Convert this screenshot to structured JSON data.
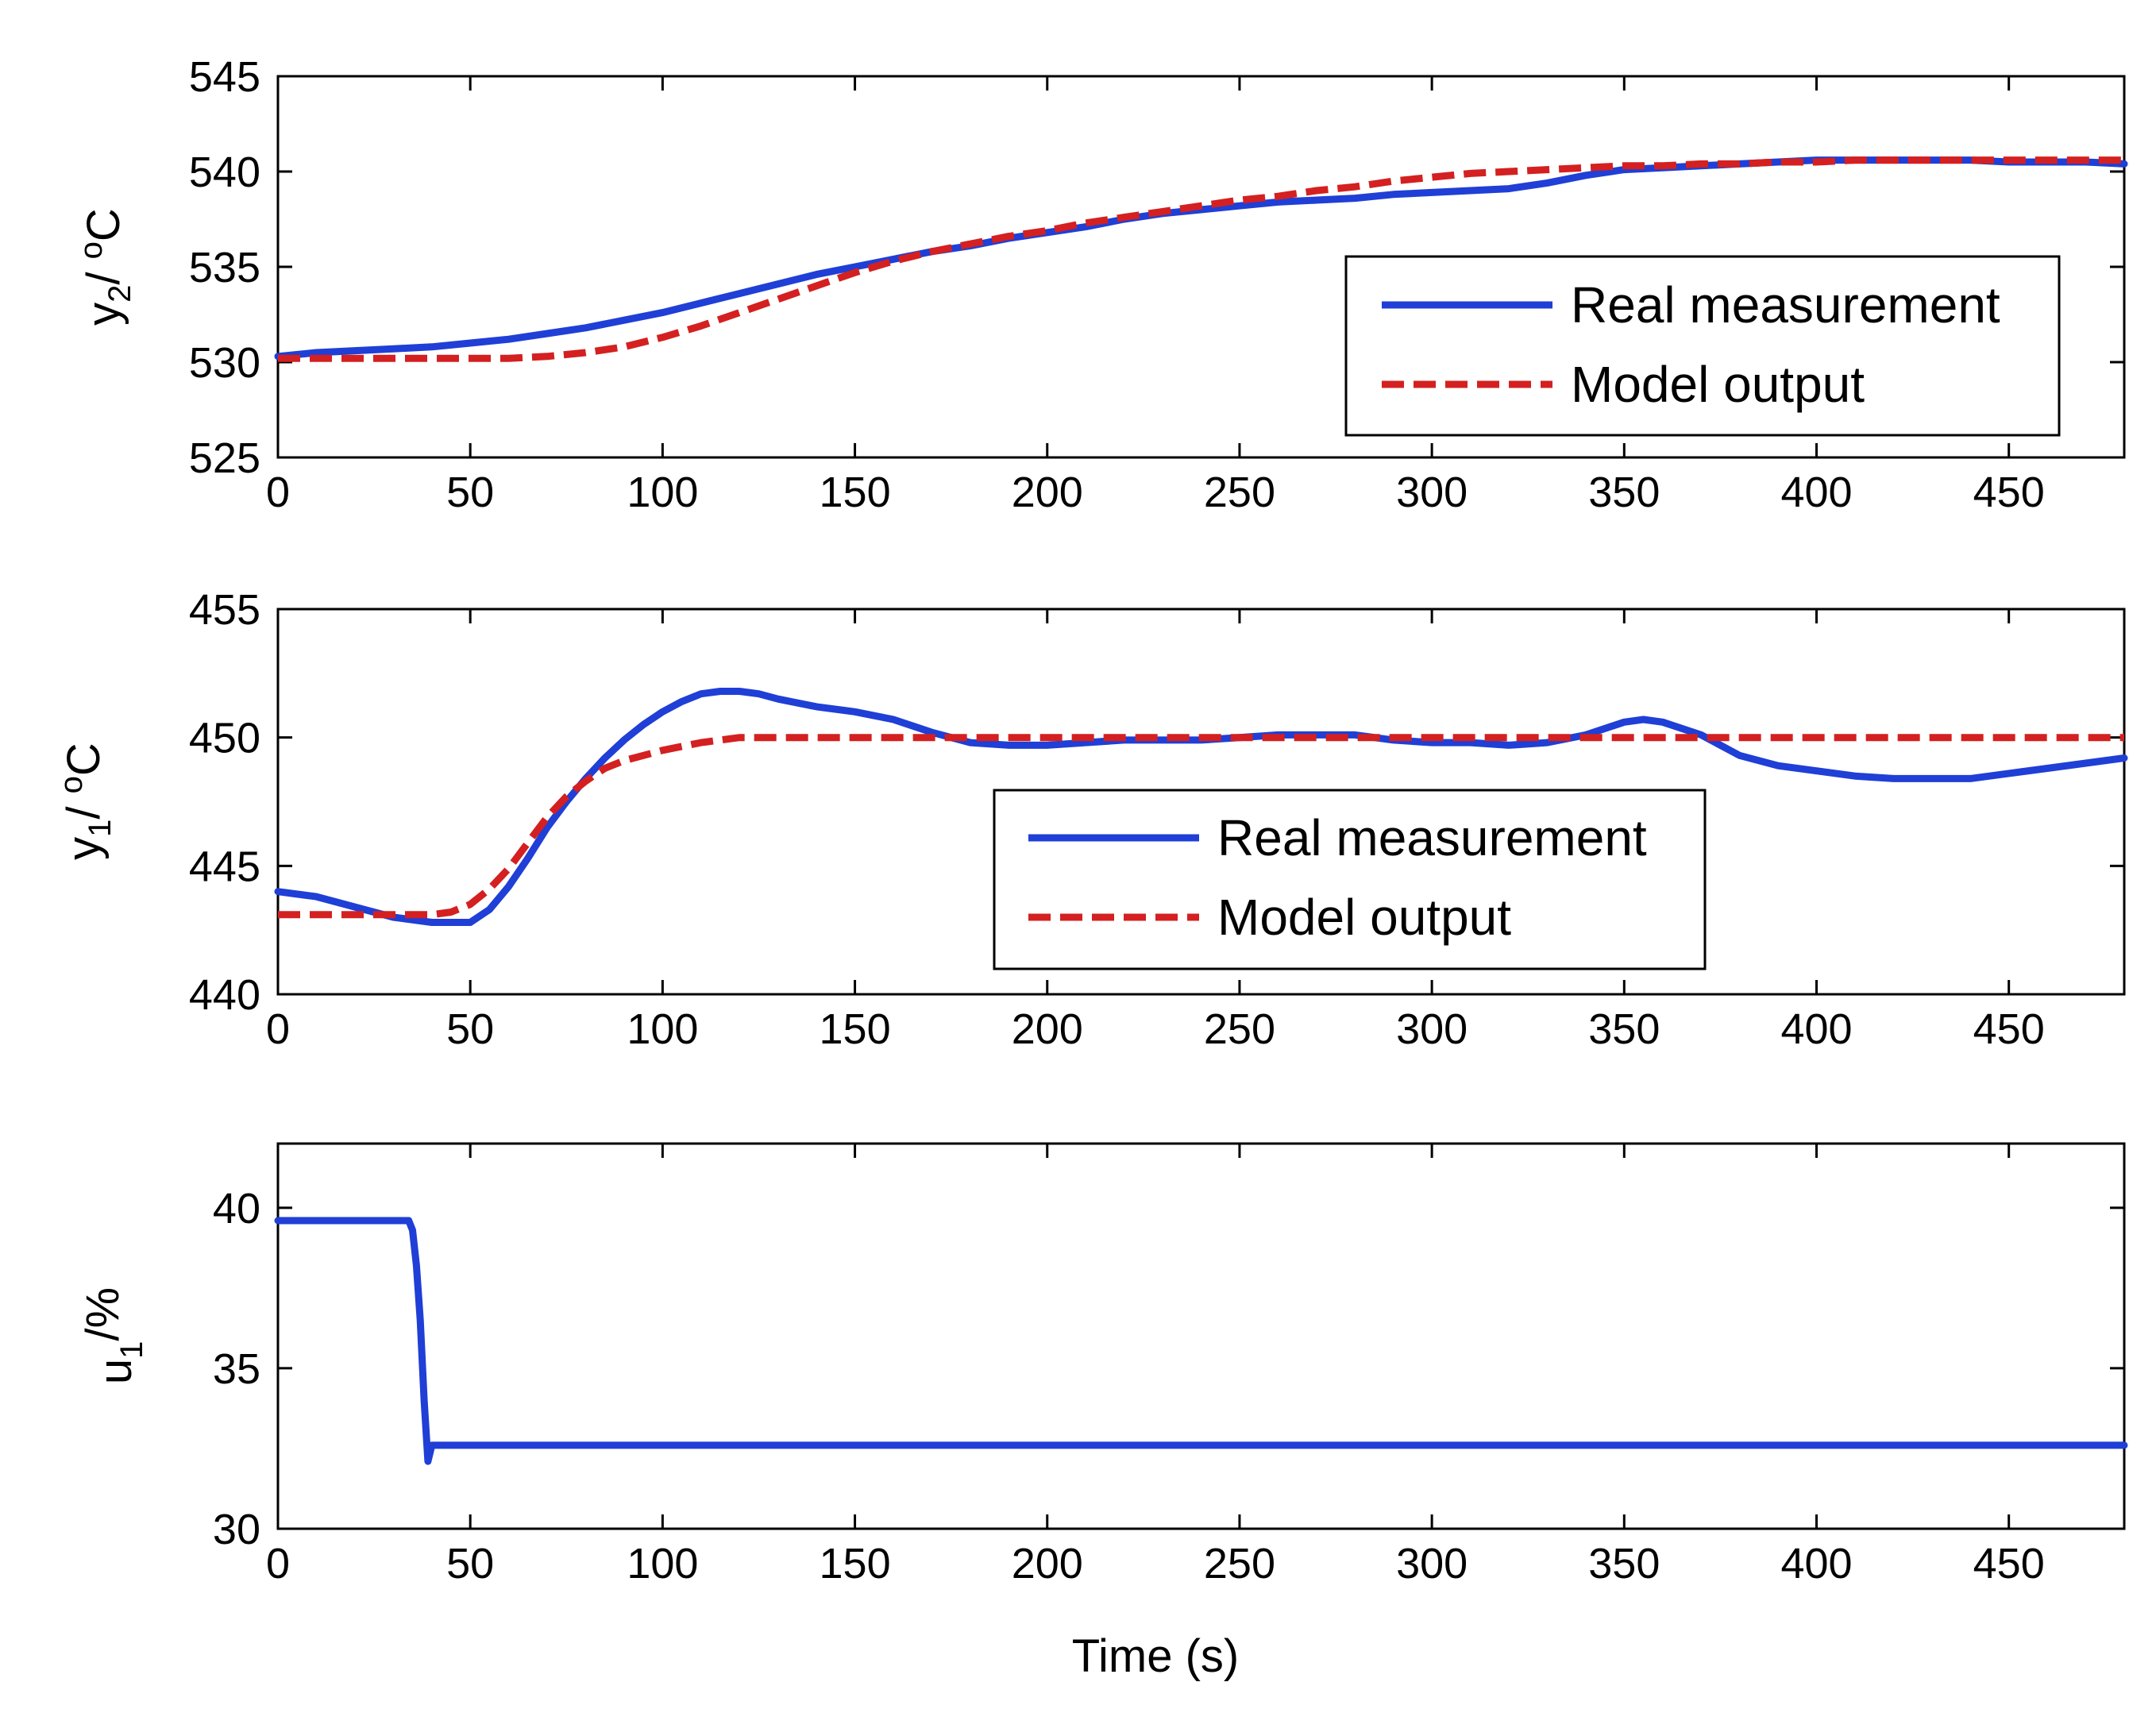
{
  "chart_data": [
    {
      "type": "line",
      "id": "y2",
      "ylabel": "y",
      "ylabel_sub": "2",
      "ylabel_unit": "/ oC",
      "xlabel": "",
      "xlim": [
        0,
        480
      ],
      "ylim": [
        525,
        545
      ],
      "xticks": [
        0,
        50,
        100,
        150,
        200,
        250,
        300,
        350,
        400,
        450
      ],
      "yticks": [
        525,
        530,
        535,
        540,
        545
      ],
      "legend_position": "lower-right",
      "series": [
        {
          "name": "Real measurement",
          "color": "#1f3fd6",
          "style": "solid",
          "x": [
            0,
            10,
            20,
            30,
            40,
            50,
            60,
            70,
            80,
            90,
            100,
            110,
            120,
            130,
            140,
            150,
            160,
            170,
            180,
            190,
            200,
            210,
            220,
            230,
            240,
            250,
            260,
            270,
            280,
            290,
            300,
            310,
            320,
            330,
            340,
            350,
            360,
            370,
            380,
            390,
            400,
            410,
            420,
            430,
            440,
            450,
            460,
            470,
            480
          ],
          "y": [
            530.3,
            530.5,
            530.6,
            530.7,
            530.8,
            531.0,
            531.2,
            531.5,
            531.8,
            532.2,
            532.6,
            533.1,
            533.6,
            534.1,
            534.6,
            535.0,
            535.4,
            535.8,
            536.1,
            536.5,
            536.8,
            537.1,
            537.5,
            537.8,
            538.0,
            538.2,
            538.4,
            538.5,
            538.6,
            538.8,
            538.9,
            539.0,
            539.1,
            539.4,
            539.8,
            540.1,
            540.2,
            540.3,
            540.4,
            540.5,
            540.6,
            540.6,
            540.6,
            540.6,
            540.6,
            540.5,
            540.5,
            540.5,
            540.4
          ]
        },
        {
          "name": "Model output",
          "color": "#d42020",
          "style": "dashed",
          "x": [
            0,
            10,
            20,
            30,
            40,
            50,
            60,
            70,
            80,
            90,
            100,
            110,
            120,
            130,
            140,
            150,
            160,
            170,
            180,
            190,
            200,
            210,
            220,
            230,
            240,
            250,
            260,
            270,
            280,
            290,
            300,
            310,
            320,
            330,
            340,
            350,
            360,
            370,
            380,
            390,
            400,
            410,
            420,
            430,
            440,
            450,
            460,
            470,
            480
          ],
          "y": [
            530.2,
            530.2,
            530.2,
            530.2,
            530.2,
            530.2,
            530.2,
            530.3,
            530.5,
            530.8,
            531.3,
            531.9,
            532.6,
            533.3,
            534.0,
            534.7,
            535.3,
            535.8,
            536.2,
            536.6,
            536.9,
            537.3,
            537.6,
            537.9,
            538.2,
            538.5,
            538.7,
            539.0,
            539.2,
            539.5,
            539.7,
            539.9,
            540.0,
            540.1,
            540.2,
            540.3,
            540.3,
            540.4,
            540.4,
            540.5,
            540.5,
            540.6,
            540.6,
            540.6,
            540.6,
            540.6,
            540.6,
            540.6,
            540.6
          ]
        }
      ]
    },
    {
      "type": "line",
      "id": "y1",
      "ylabel": "y",
      "ylabel_sub": "1",
      "ylabel_unit": "/ oC",
      "xlabel": "",
      "xlim": [
        0,
        480
      ],
      "ylim": [
        440,
        455
      ],
      "xticks": [
        0,
        50,
        100,
        150,
        200,
        250,
        300,
        350,
        400,
        450
      ],
      "yticks": [
        440,
        445,
        450,
        455
      ],
      "legend_position": "center",
      "series": [
        {
          "name": "Real measurement",
          "color": "#1f3fd6",
          "style": "solid",
          "x": [
            0,
            10,
            20,
            30,
            40,
            50,
            55,
            60,
            65,
            70,
            75,
            80,
            85,
            90,
            95,
            100,
            105,
            110,
            115,
            120,
            125,
            130,
            140,
            150,
            160,
            170,
            180,
            190,
            200,
            210,
            220,
            230,
            240,
            250,
            260,
            270,
            280,
            290,
            300,
            310,
            320,
            330,
            340,
            350,
            355,
            360,
            370,
            380,
            390,
            400,
            410,
            420,
            430,
            440,
            450,
            460,
            470,
            480
          ],
          "y": [
            444.0,
            443.8,
            443.4,
            443.0,
            442.8,
            442.8,
            443.3,
            444.2,
            445.3,
            446.5,
            447.5,
            448.4,
            449.2,
            449.9,
            450.5,
            451.0,
            451.4,
            451.7,
            451.8,
            451.8,
            451.7,
            451.5,
            451.2,
            451.0,
            450.7,
            450.2,
            449.8,
            449.7,
            449.7,
            449.8,
            449.9,
            449.9,
            449.9,
            450.0,
            450.1,
            450.1,
            450.1,
            449.9,
            449.8,
            449.8,
            449.7,
            449.8,
            450.1,
            450.6,
            450.7,
            450.6,
            450.1,
            449.3,
            448.9,
            448.7,
            448.5,
            448.4,
            448.4,
            448.4,
            448.6,
            448.8,
            449.0,
            449.2
          ]
        },
        {
          "name": "Model output",
          "color": "#d42020",
          "style": "dashed",
          "x": [
            0,
            10,
            20,
            30,
            40,
            45,
            50,
            55,
            60,
            65,
            70,
            75,
            80,
            85,
            90,
            95,
            100,
            110,
            120,
            130,
            140,
            150,
            200,
            250,
            300,
            350,
            400,
            450,
            480
          ],
          "y": [
            443.1,
            443.1,
            443.1,
            443.1,
            443.1,
            443.2,
            443.5,
            444.1,
            444.9,
            445.9,
            446.9,
            447.7,
            448.3,
            448.8,
            449.1,
            449.3,
            449.5,
            449.8,
            450.0,
            450.0,
            450.0,
            450.0,
            450.0,
            450.0,
            450.0,
            450.0,
            450.0,
            450.0,
            450.0
          ]
        }
      ]
    },
    {
      "type": "line",
      "id": "u1",
      "ylabel": "u",
      "ylabel_sub": "1",
      "ylabel_unit": "/%",
      "xlabel": "Time (s)",
      "xlim": [
        0,
        480
      ],
      "ylim": [
        30,
        42
      ],
      "xticks": [
        0,
        50,
        100,
        150,
        200,
        250,
        300,
        350,
        400,
        450
      ],
      "yticks": [
        30,
        35,
        40
      ],
      "series": [
        {
          "name": "u1",
          "color": "#1f3fd6",
          "style": "solid",
          "x": [
            0,
            30,
            34,
            35,
            36,
            37,
            38,
            39,
            40,
            480
          ],
          "y": [
            39.6,
            39.6,
            39.6,
            39.3,
            38.2,
            36.5,
            34.0,
            32.1,
            32.6,
            32.6
          ]
        }
      ]
    }
  ]
}
